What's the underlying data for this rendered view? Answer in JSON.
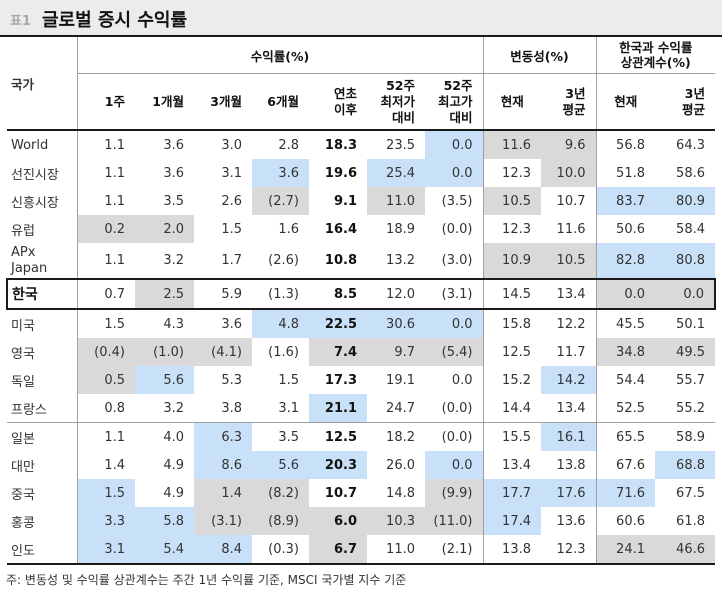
{
  "title": {
    "number": "표1",
    "text": "글로벌 증시 수익률"
  },
  "header": {
    "country": "국가",
    "group_returns": "수익률(%)",
    "group_volatility": "변동성(%)",
    "group_correlation_line1": "한국과 수익률",
    "group_correlation_line2": "상관계수(%)",
    "cols": {
      "w1": "1주",
      "m1": "1개월",
      "m3": "3개월",
      "m6": "6개월",
      "ytd_1": "연초",
      "ytd_2": "이후",
      "lo_1": "52주",
      "lo_2": "최저가",
      "lo_3": "대비",
      "hi_1": "52주",
      "hi_2": "최고가",
      "hi_3": "대비",
      "vol_now": "현재",
      "vol_3y_1": "3년",
      "vol_3y_2": "평균",
      "cor_now": "현재",
      "cor_3y_1": "3년",
      "cor_3y_2": "평균"
    }
  },
  "highlight_colors": {
    "blue": "#c9e1f8",
    "gray": "#d9d9d9"
  },
  "rows": [
    {
      "country": "World",
      "values": [
        "1.1",
        "3.6",
        "3.0",
        "2.8",
        "18.3",
        "23.5",
        "0.0",
        "11.6",
        "9.6",
        "56.8",
        "64.3"
      ],
      "shade": [
        "",
        "",
        "",
        "",
        "",
        "",
        "b",
        "g",
        "g",
        "",
        ""
      ]
    },
    {
      "country": "선진시장",
      "values": [
        "1.1",
        "3.6",
        "3.1",
        "3.6",
        "19.6",
        "25.4",
        "0.0",
        "12.3",
        "10.0",
        "51.8",
        "58.6"
      ],
      "shade": [
        "",
        "",
        "",
        "b",
        "",
        "b",
        "b",
        "",
        "g",
        "",
        ""
      ]
    },
    {
      "country": "신흥시장",
      "values": [
        "1.1",
        "3.5",
        "2.6",
        "(2.7)",
        "9.1",
        "11.0",
        "(3.5)",
        "10.5",
        "10.7",
        "83.7",
        "80.9"
      ],
      "shade": [
        "",
        "",
        "",
        "g",
        "",
        "g",
        "",
        "g",
        "",
        "b",
        "b"
      ]
    },
    {
      "country": "유럽",
      "values": [
        "0.2",
        "2.0",
        "1.5",
        "1.6",
        "16.4",
        "18.9",
        "(0.0)",
        "12.3",
        "11.6",
        "50.6",
        "58.4"
      ],
      "shade": [
        "g",
        "g",
        "",
        "",
        "",
        "",
        "",
        "",
        "",
        "",
        ""
      ]
    },
    {
      "country": "APx Japan",
      "country_1": "APx",
      "country_2": "Japan",
      "values": [
        "1.1",
        "3.2",
        "1.7",
        "(2.6)",
        "10.8",
        "13.2",
        "(3.0)",
        "10.9",
        "10.5",
        "82.8",
        "80.8"
      ],
      "shade": [
        "",
        "",
        "",
        "",
        "",
        "",
        "",
        "g",
        "g",
        "b",
        "b"
      ]
    },
    {
      "country": "한국",
      "values": [
        "0.7",
        "2.5",
        "5.9",
        "(1.3)",
        "8.5",
        "12.0",
        "(3.1)",
        "14.5",
        "13.4",
        "0.0",
        "0.0"
      ],
      "shade": [
        "",
        "g",
        "",
        "",
        "",
        "",
        "",
        "",
        "",
        "g",
        "g"
      ]
    },
    {
      "country": "미국",
      "values": [
        "1.5",
        "4.3",
        "3.6",
        "4.8",
        "22.5",
        "30.6",
        "0.0",
        "15.8",
        "12.2",
        "45.5",
        "50.1"
      ],
      "shade": [
        "",
        "",
        "",
        "b",
        "b",
        "b",
        "b",
        "",
        "",
        "",
        ""
      ]
    },
    {
      "country": "영국",
      "values": [
        "(0.4)",
        "(1.0)",
        "(4.1)",
        "(1.6)",
        "7.4",
        "9.7",
        "(5.4)",
        "12.5",
        "11.7",
        "34.8",
        "49.5"
      ],
      "shade": [
        "g",
        "g",
        "g",
        "",
        "g",
        "g",
        "g",
        "",
        "",
        "g",
        "g"
      ]
    },
    {
      "country": "독일",
      "values": [
        "0.5",
        "5.6",
        "5.3",
        "1.5",
        "17.3",
        "19.1",
        "0.0",
        "15.2",
        "14.2",
        "54.4",
        "55.7"
      ],
      "shade": [
        "g",
        "b",
        "",
        "",
        "",
        "",
        "",
        "",
        "b",
        "",
        ""
      ]
    },
    {
      "country": "프랑스",
      "values": [
        "0.8",
        "3.2",
        "3.8",
        "3.1",
        "21.1",
        "24.7",
        "(0.0)",
        "14.4",
        "13.4",
        "52.5",
        "55.2"
      ],
      "shade": [
        "",
        "",
        "",
        "",
        "b",
        "",
        "",
        "",
        "",
        "",
        ""
      ]
    },
    {
      "country": "일본",
      "values": [
        "1.1",
        "4.0",
        "6.3",
        "3.5",
        "12.5",
        "18.2",
        "(0.0)",
        "15.5",
        "16.1",
        "65.5",
        "58.9"
      ],
      "shade": [
        "",
        "",
        "b",
        "",
        "",
        "",
        "",
        "",
        "b",
        "",
        ""
      ]
    },
    {
      "country": "대만",
      "values": [
        "1.4",
        "4.9",
        "8.6",
        "5.6",
        "20.3",
        "26.0",
        "0.0",
        "13.4",
        "13.8",
        "67.6",
        "68.8"
      ],
      "shade": [
        "",
        "",
        "b",
        "b",
        "b",
        "",
        "b",
        "",
        "",
        "",
        "b"
      ]
    },
    {
      "country": "중국",
      "values": [
        "1.5",
        "4.9",
        "1.4",
        "(8.2)",
        "10.7",
        "14.8",
        "(9.9)",
        "17.7",
        "17.6",
        "71.6",
        "67.5"
      ],
      "shade": [
        "b",
        "",
        "g",
        "g",
        "",
        "",
        "g",
        "b",
        "b",
        "b",
        ""
      ]
    },
    {
      "country": "홍콩",
      "values": [
        "3.3",
        "5.8",
        "(3.1)",
        "(8.9)",
        "6.0",
        "10.3",
        "(11.0)",
        "17.4",
        "13.6",
        "60.6",
        "61.8"
      ],
      "shade": [
        "b",
        "b",
        "g",
        "g",
        "g",
        "g",
        "g",
        "b",
        "",
        "",
        ""
      ]
    },
    {
      "country": "인도",
      "values": [
        "3.1",
        "5.4",
        "8.4",
        "(0.3)",
        "6.7",
        "11.0",
        "(2.1)",
        "13.8",
        "12.3",
        "24.1",
        "46.6"
      ],
      "shade": [
        "b",
        "b",
        "b",
        "",
        "g",
        "",
        "",
        "",
        "",
        "g",
        "g"
      ]
    }
  ],
  "footnote": "주: 변동성 및 수익률 상관계수는 주간 1년 수익률 기준, MSCI 국가별 지수 기준"
}
